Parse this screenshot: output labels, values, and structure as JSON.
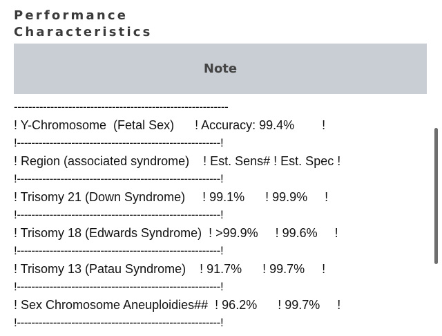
{
  "section": {
    "title_line1": "Performance",
    "title_line2": "Characteristics"
  },
  "note": {
    "header": "Note",
    "lines": [
      "-----------------------------------------------------------",
      "! Y-Chromosome  (Fetal Sex)      ! Accuracy: 99.4%        !",
      "!--------------------------------------------------------!",
      "! Region (associated syndrome)    ! Est. Sens# ! Est. Spec !",
      "!--------------------------------------------------------!",
      "! Trisomy 21 (Down Syndrome)     ! 99.1%      ! 99.9%     !",
      "!--------------------------------------------------------!",
      "! Trisomy 18 (Edwards Syndrome)  ! >99.9%     ! 99.6%     !",
      "!--------------------------------------------------------!",
      "! Trisomy 13 (Patau Syndrome)    ! 91.7%      ! 99.7%     !",
      "!--------------------------------------------------------!",
      "! Sex Chromosome Aneuploidies##  ! 96.2%      ! 99.7%     !",
      "!--------------------------------------------------------!"
    ]
  }
}
